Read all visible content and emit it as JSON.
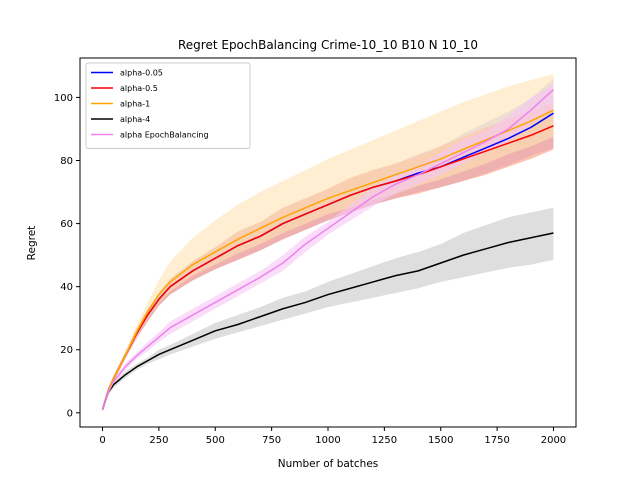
{
  "chart_data": {
    "type": "line",
    "title": "Regret EpochBalancing Crime-10_10 B10 N 10_10",
    "xlabel": "Number of batches",
    "ylabel": "Regret",
    "xlim": [
      -100,
      2100
    ],
    "ylim": [
      -4.5,
      112.5
    ],
    "xticks": [
      0,
      250,
      500,
      750,
      1000,
      1250,
      1500,
      1750,
      2000
    ],
    "yticks": [
      0,
      20,
      40,
      60,
      80,
      100
    ],
    "grid": false,
    "legend_position": "upper-left",
    "x": [
      0,
      25,
      50,
      100,
      150,
      200,
      250,
      300,
      400,
      500,
      600,
      700,
      800,
      900,
      1000,
      1100,
      1200,
      1300,
      1400,
      1500,
      1600,
      1700,
      1800,
      1900,
      2000
    ],
    "series": [
      {
        "name": "alpha-0.05",
        "color": "#0000ff",
        "values": [
          1,
          7,
          11,
          18,
          25,
          31,
          36,
          40,
          45,
          49,
          53,
          56,
          60,
          63,
          66,
          69,
          71.5,
          73.5,
          76,
          78,
          81,
          84,
          87,
          90.5,
          95
        ],
        "lower": [
          0.5,
          6,
          10,
          17,
          23.5,
          29,
          34,
          37.5,
          42,
          45.5,
          48.5,
          51.5,
          55,
          58,
          61,
          63.5,
          66,
          68,
          70,
          71.5,
          73.5,
          76,
          78.5,
          81.5,
          84
        ],
        "upper": [
          1.5,
          8,
          12,
          19,
          26.5,
          33,
          38,
          42.5,
          48,
          52.5,
          57.5,
          60.5,
          65,
          68,
          71,
          74.5,
          77,
          79,
          82,
          84.5,
          88.5,
          92,
          95.5,
          99.5,
          106
        ],
        "fill": "#b8b8ff"
      },
      {
        "name": "alpha-0.5",
        "color": "#ff0000",
        "values": [
          1,
          7,
          11,
          18,
          25,
          31,
          36,
          40,
          45,
          49,
          53,
          56,
          60,
          63,
          66,
          69,
          71.5,
          73.5,
          75.5,
          78,
          80.5,
          83,
          85.5,
          88,
          91
        ],
        "lower": [
          0.5,
          6,
          10,
          17,
          23.5,
          29,
          34,
          37.5,
          42,
          45.5,
          48.5,
          51.5,
          55,
          58,
          61,
          63.5,
          66,
          68,
          69.5,
          71.5,
          73.5,
          75.5,
          78,
          80.5,
          83.5
        ],
        "upper": [
          1.5,
          8,
          12,
          19,
          26.5,
          33,
          38,
          42.5,
          48,
          52.5,
          57.5,
          60.5,
          65,
          68,
          71,
          74.5,
          77,
          79,
          81.5,
          84.5,
          87.5,
          90.5,
          93,
          95.5,
          98.5
        ],
        "fill": "#ff9a7a"
      },
      {
        "name": "alpha-1",
        "color": "#ffa500",
        "values": [
          1,
          7,
          11,
          18,
          25.5,
          32,
          37.5,
          41.5,
          47,
          51,
          55,
          58.5,
          62,
          65,
          68,
          70.5,
          73,
          75.5,
          78,
          80.5,
          83.5,
          86.5,
          89.5,
          92.5,
          96
        ],
        "lower": [
          0.5,
          6,
          10,
          17,
          24,
          30,
          35,
          38.5,
          43.5,
          47,
          50.5,
          53.5,
          57,
          60,
          63,
          65,
          67.5,
          69.5,
          72,
          74,
          76.5,
          79,
          82,
          84.5,
          87.5
        ],
        "upper": [
          1.5,
          8,
          12,
          19.5,
          27.5,
          35,
          42,
          48,
          55.5,
          61,
          66,
          70,
          73.5,
          77,
          80.5,
          83.5,
          86.5,
          89.5,
          92.5,
          95.5,
          98.5,
          101,
          103.5,
          105.5,
          107.5
        ],
        "fill": "#ffe2b2"
      },
      {
        "name": "alpha-4",
        "color": "#000000",
        "values": [
          1,
          6.5,
          9,
          12,
          14.5,
          16.5,
          18.5,
          20,
          23,
          26,
          28,
          30.5,
          33,
          35,
          37.5,
          39.5,
          41.5,
          43.5,
          45,
          47.5,
          50,
          52,
          54,
          55.5,
          57
        ],
        "lower": [
          0.5,
          5.5,
          8,
          11,
          13.5,
          15.5,
          17,
          18.5,
          21,
          23.5,
          25.5,
          27.5,
          29.5,
          31.5,
          33.5,
          35,
          36.5,
          38,
          39.5,
          41.5,
          43,
          44.5,
          46,
          47,
          48.5
        ],
        "upper": [
          1.5,
          7.5,
          10,
          13,
          15.5,
          17.5,
          20,
          21.5,
          25,
          28.5,
          31,
          33.5,
          36.5,
          38.5,
          41.5,
          44,
          46.5,
          49,
          51,
          53.5,
          57,
          59.5,
          62,
          63.5,
          65
        ],
        "fill": "#c8c8c8"
      },
      {
        "name": "alpha EpochBalancing",
        "color": "#ee82ee",
        "values": [
          1,
          6.5,
          10,
          14.5,
          18,
          21,
          24,
          27,
          31,
          35,
          39,
          43,
          47.5,
          53.5,
          58.5,
          63.5,
          68.5,
          72.5,
          75.5,
          79,
          82.5,
          86,
          90,
          96,
          102.5
        ],
        "lower": [
          0.5,
          5.5,
          9,
          13.5,
          17,
          19.5,
          22.5,
          25,
          29,
          33,
          37,
          41,
          45,
          51,
          56.5,
          61,
          65.5,
          69.5,
          72.5,
          75.5,
          79,
          82.5,
          86,
          91.5,
          96
        ],
        "upper": [
          1.5,
          7.5,
          11,
          15.5,
          19,
          22.5,
          25.5,
          29,
          33,
          37,
          41,
          45,
          50,
          56,
          60.5,
          66,
          71.5,
          75.5,
          78.5,
          82.5,
          86.5,
          89.5,
          94,
          100,
          104
        ],
        "fill": "#f5c6f5"
      }
    ]
  }
}
